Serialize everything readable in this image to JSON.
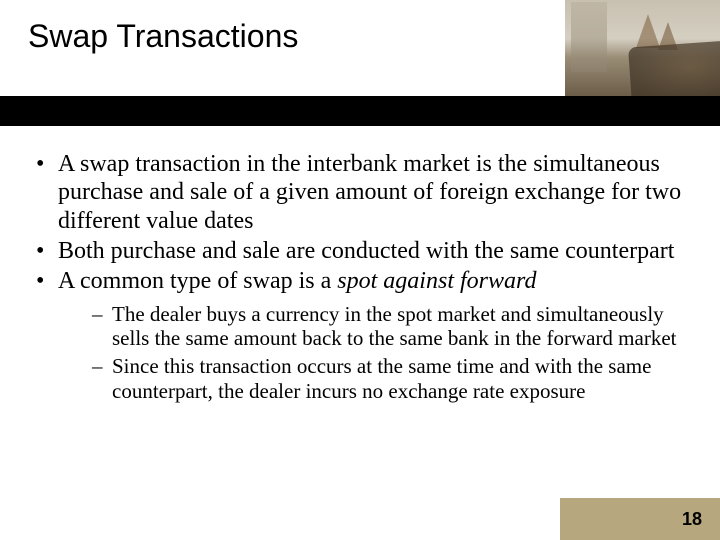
{
  "title": "Swap Transactions",
  "title_fontsize": 32,
  "body_fontsize": 24,
  "sub_fontsize": 21,
  "line_height_main": 1.18,
  "line_height_sub": 1.18,
  "page_number": "18",
  "pagenum_fontsize": 18,
  "colors": {
    "bar": "#000000",
    "footer_block": "#b7a77f",
    "text": "#000000",
    "background": "#ffffff"
  },
  "bullets": {
    "b1_part1": "A swap transaction in the interbank market is the simultaneous purchase and sale of a given amount of foreign exchange for two different value dates",
    "b2": "Both purchase and sale are conducted with the same counterpart",
    "b3_part1": "A common type of swap is a ",
    "b3_italic": "spot against forward"
  },
  "sub_bullets": {
    "s1": "The dealer buys a currency in the spot market and simultaneously sells the same amount back to the same bank in the forward market",
    "s2": "Since this transaction occurs at the same time and with the same counterpart, the dealer incurs no exchange rate exposure"
  }
}
